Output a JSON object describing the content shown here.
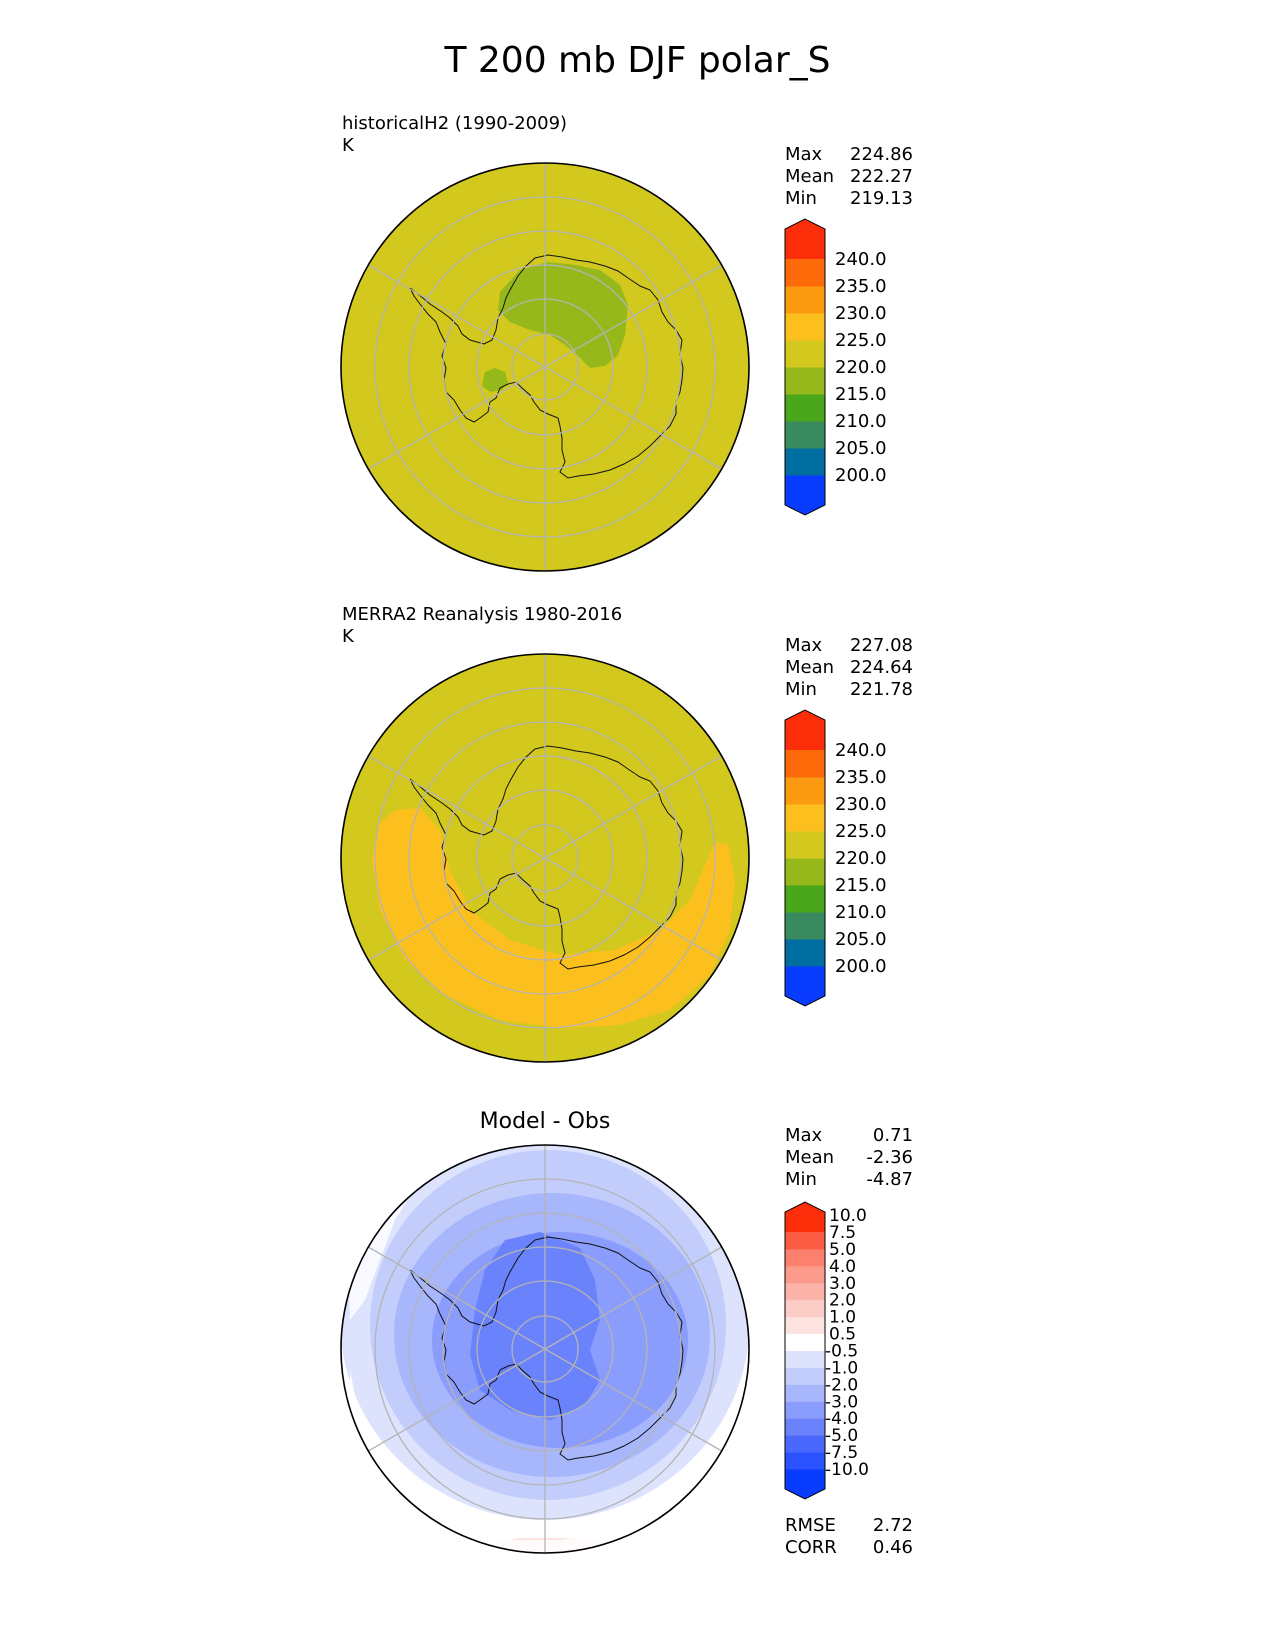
{
  "figure": {
    "title": "T 200 mb DJF polar_S"
  },
  "panels": [
    {
      "id": "test",
      "label": "historicalH2 (1990-2009)",
      "units": "K",
      "stats": [
        {
          "name": "Max",
          "value": "224.86"
        },
        {
          "name": "Mean",
          "value": "222.27"
        },
        {
          "name": "Min",
          "value": "219.13"
        }
      ],
      "field": {
        "background": "#d2c81e",
        "regions": [
          "low-center"
        ]
      }
    },
    {
      "id": "ref",
      "label": "MERRA2 Reanalysis 1980-2016",
      "units": "K",
      "stats": [
        {
          "name": "Max",
          "value": "227.08"
        },
        {
          "name": "Mean",
          "value": "224.64"
        },
        {
          "name": "Min",
          "value": "221.78"
        }
      ],
      "field": {
        "background": "#d2c81e",
        "regions": [
          "warm-band"
        ]
      }
    },
    {
      "id": "diff",
      "title": "Model - Obs",
      "stats": [
        {
          "name": "Max",
          "value": "0.71"
        },
        {
          "name": "Mean",
          "value": "-2.36"
        },
        {
          "name": "Min",
          "value": "-4.87"
        }
      ],
      "extra_stats": [
        {
          "name": "RMSE",
          "value": "2.72"
        },
        {
          "name": "CORR",
          "value": "0.46"
        }
      ],
      "field": {
        "background": "#d9e0fc",
        "regions": [
          "diff-rings"
        ]
      }
    }
  ],
  "chart_data": {
    "type": "heatmap",
    "projection": "south polar stereographic",
    "title": "T 200 mb DJF polar_S",
    "absolute_colorbar": {
      "levels": [
        200,
        205,
        210,
        215,
        220,
        225,
        230,
        235,
        240
      ],
      "tick_labels": [
        "200.0",
        "205.0",
        "210.0",
        "215.0",
        "220.0",
        "225.0",
        "230.0",
        "235.0",
        "240.0"
      ],
      "colors": [
        "#0a3cff",
        "#006ea0",
        "#3a8a60",
        "#4aa61a",
        "#96b81a",
        "#d2c81e",
        "#fcc01e",
        "#fc9a12",
        "#fc6a0a",
        "#fc2e0a"
      ],
      "extend": "both"
    },
    "difference_colorbar": {
      "levels": [
        -10,
        -7.5,
        -5,
        -4,
        -3,
        -2,
        -1,
        -0.5,
        0.5,
        1,
        2,
        3,
        4,
        5,
        7.5,
        10
      ],
      "tick_labels": [
        "-10.0",
        "-7.5",
        "-5.0",
        "-4.0",
        "-3.0",
        "-2.0",
        "-1.0",
        "-0.5",
        "0.5",
        "1.0",
        "2.0",
        "3.0",
        "4.0",
        "5.0",
        "7.5",
        "10.0"
      ],
      "colors": [
        "#0a3cff",
        "#2a52fe",
        "#4a68fd",
        "#6a82fc",
        "#8a9cfc",
        "#a8b6fc",
        "#c2cdfc",
        "#dde3fc",
        "#ffffff",
        "#fce3e0",
        "#fcccc6",
        "#fcb4aa",
        "#fc9a8c",
        "#fc806e",
        "#fc5c44",
        "#fc2e0a"
      ],
      "extend": "both"
    },
    "series": [
      {
        "name": "historicalH2 (1990-2009)",
        "max": 224.86,
        "mean": 222.27,
        "min": 219.13
      },
      {
        "name": "MERRA2 Reanalysis 1980-2016",
        "max": 227.08,
        "mean": 224.64,
        "min": 221.78
      },
      {
        "name": "Model - Obs",
        "max": 0.71,
        "mean": -2.36,
        "min": -4.87,
        "rmse": 2.72,
        "corr": 0.46
      }
    ]
  }
}
